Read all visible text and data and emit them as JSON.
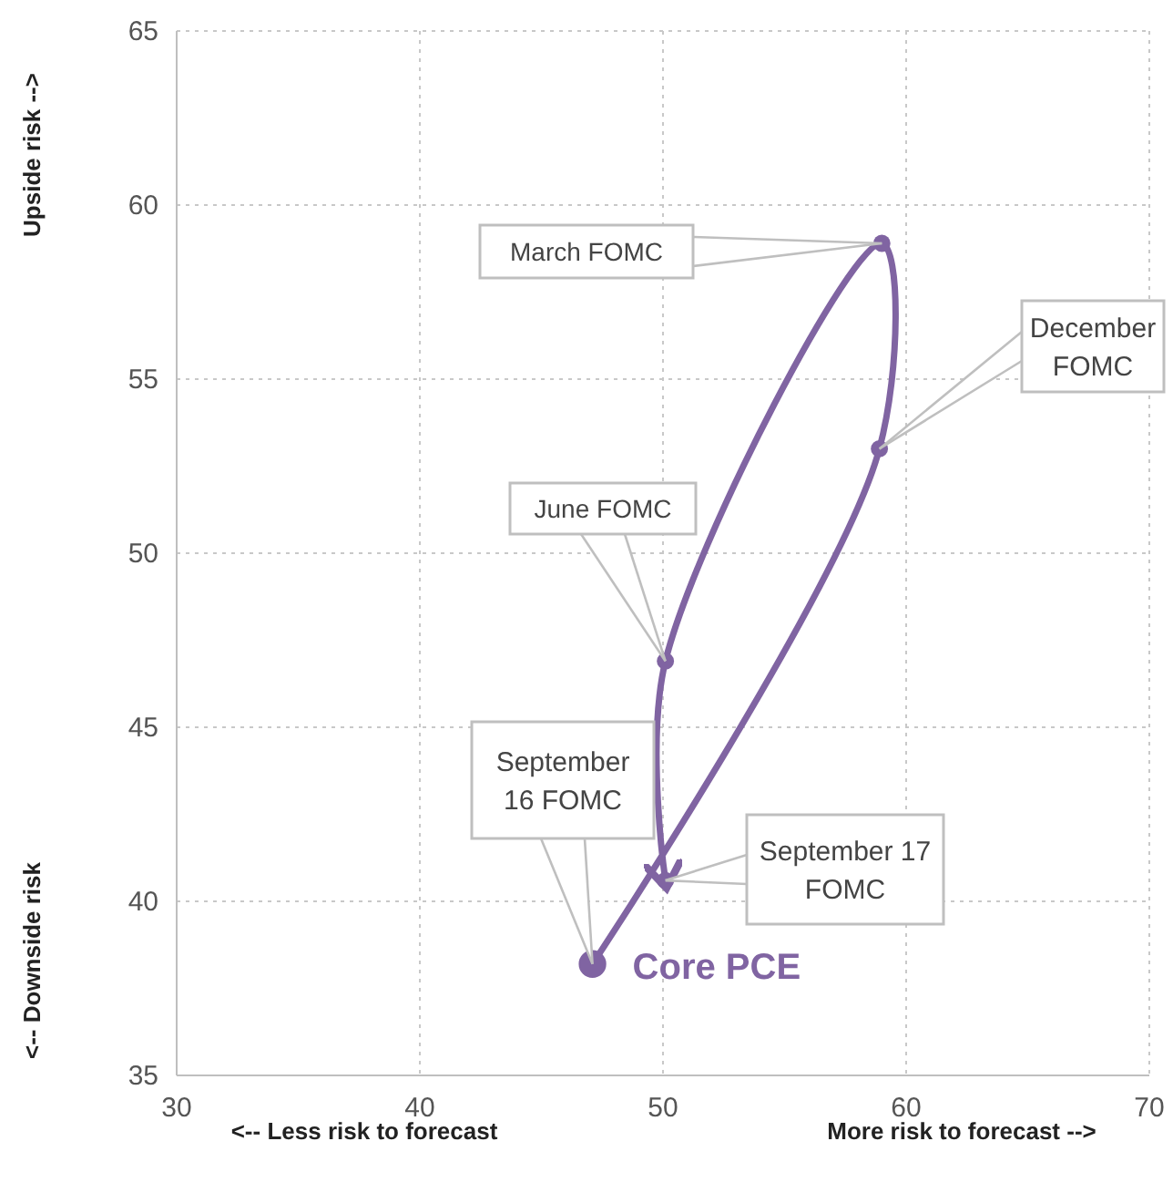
{
  "chart_data": {
    "type": "line",
    "x": [
      47.1,
      58.9,
      59.0,
      50.1,
      50.1
    ],
    "xlim": [
      30,
      70
    ],
    "xticks": [
      30,
      40,
      50,
      60,
      70
    ],
    "ylim": [
      35,
      65
    ],
    "yticks": [
      35,
      40,
      45,
      50,
      55,
      60,
      65
    ],
    "grid": true,
    "marker": "circle",
    "line_style": "solid",
    "series": [
      {
        "name": "Core PCE",
        "color": "#8064a2",
        "values": [
          38.2,
          53.0,
          58.9,
          46.9,
          40.6
        ]
      }
    ],
    "annotations": [
      "<-- Less risk to forecast",
      "More risk to forecast -->",
      "Upside risk -->",
      "<-- Downside risk",
      {
        "text": "September 16 FOMC",
        "x": 47.1,
        "y": 38.2
      },
      {
        "text": "December FOMC",
        "x": 58.9,
        "y": 53.0
      },
      {
        "text": "March FOMC",
        "x": 59.0,
        "y": 58.9
      },
      {
        "text": "June FOMC",
        "x": 50.1,
        "y": 46.9
      },
      {
        "text": "September 17 FOMC",
        "x": 50.1,
        "y": 40.6
      }
    ]
  }
}
